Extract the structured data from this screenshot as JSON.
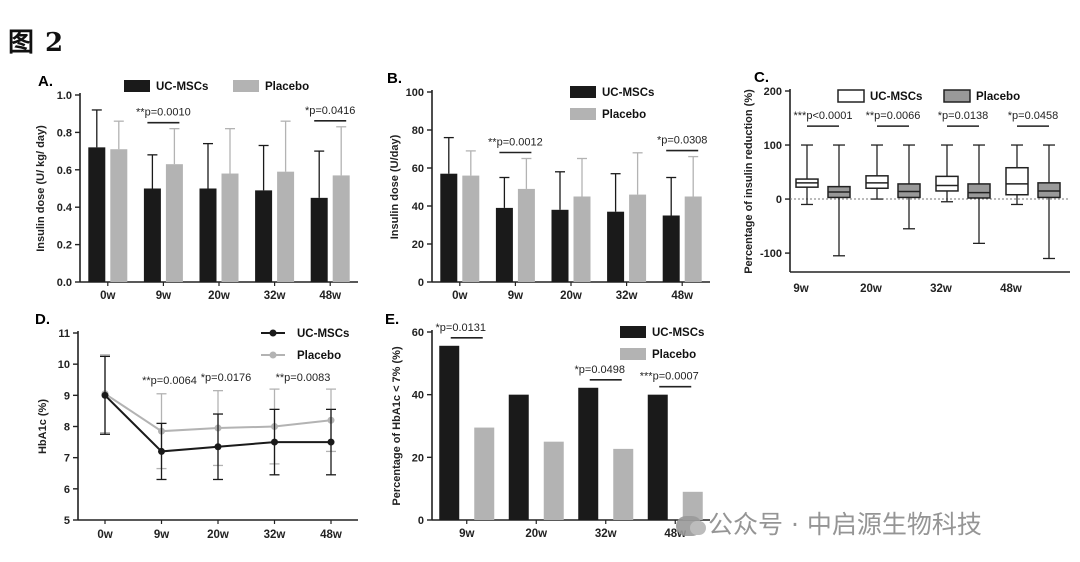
{
  "figure": {
    "title": "图 2"
  },
  "watermark": {
    "text": "公众号 · 中启源生物科技",
    "icon": "wechat-icon"
  },
  "colors": {
    "ucmsc": "#1a1a1a",
    "placebo": "#b3b3b3",
    "axis": "#222222"
  },
  "chart_data": [
    {
      "id": "A",
      "letter": "A.",
      "type": "bar",
      "ylabel": "Insulin dose (U/ kg/ day)",
      "ylim": [
        0,
        1.0
      ],
      "yticks": [
        "0.0",
        "0.2",
        "0.4",
        "0.6",
        "0.8",
        "1.0"
      ],
      "ytick_values": [
        0,
        0.2,
        0.4,
        0.6,
        0.8,
        1.0
      ],
      "categories": [
        "0w",
        "9w",
        "20w",
        "32w",
        "48w"
      ],
      "legend": "top",
      "series": [
        {
          "name": "UC-MSCs",
          "values": [
            0.72,
            0.5,
            0.5,
            0.49,
            0.45
          ],
          "errors": [
            0.2,
            0.18,
            0.24,
            0.24,
            0.25
          ]
        },
        {
          "name": "Placebo",
          "values": [
            0.71,
            0.63,
            0.58,
            0.59,
            0.57
          ],
          "errors": [
            0.15,
            0.19,
            0.24,
            0.27,
            0.26
          ]
        }
      ],
      "annotations": [
        {
          "category": "9w",
          "text": "**p=0.0010"
        },
        {
          "category": "48w",
          "text": "*p=0.0416"
        }
      ]
    },
    {
      "id": "B",
      "letter": "B.",
      "type": "bar",
      "ylabel": "Insulin dose (U/day)",
      "ylim": [
        0,
        100
      ],
      "yticks": [
        "0",
        "20",
        "40",
        "60",
        "80",
        "100"
      ],
      "ytick_values": [
        0,
        20,
        40,
        60,
        80,
        100
      ],
      "categories": [
        "0w",
        "9w",
        "20w",
        "32w",
        "48w"
      ],
      "legend": "top-right",
      "series": [
        {
          "name": "UC-MSCs",
          "values": [
            57,
            39,
            38,
            37,
            35
          ],
          "errors": [
            19,
            16,
            20,
            20,
            20
          ]
        },
        {
          "name": "Placebo",
          "values": [
            56,
            49,
            45,
            46,
            45
          ],
          "errors": [
            13,
            16,
            20,
            22,
            21
          ]
        }
      ],
      "annotations": [
        {
          "category": "9w",
          "text": "**p=0.0012"
        },
        {
          "category": "48w",
          "text": "*p=0.0308"
        }
      ]
    },
    {
      "id": "C",
      "letter": "C.",
      "type": "box",
      "ylabel": "Percentage of insulin reduction (%)",
      "ylim": [
        -135,
        200
      ],
      "yticks": [
        "-100",
        "0",
        "100",
        "200"
      ],
      "ytick_values": [
        -100,
        0,
        100,
        200
      ],
      "categories": [
        "9w",
        "20w",
        "32w",
        "48w"
      ],
      "legend": "top",
      "series": [
        {
          "name": "UC-MSCs",
          "boxes": [
            {
              "min": -10,
              "q1": 22,
              "median": 30,
              "q3": 37,
              "max": 100
            },
            {
              "min": 0,
              "q1": 20,
              "median": 30,
              "q3": 43,
              "max": 100
            },
            {
              "min": -5,
              "q1": 15,
              "median": 25,
              "q3": 42,
              "max": 100
            },
            {
              "min": -10,
              "q1": 8,
              "median": 28,
              "q3": 58,
              "max": 100
            }
          ]
        },
        {
          "name": "Placebo",
          "boxes": [
            {
              "min": -105,
              "q1": 3,
              "median": 13,
              "q3": 23,
              "max": 100
            },
            {
              "min": -55,
              "q1": 3,
              "median": 14,
              "q3": 28,
              "max": 100
            },
            {
              "min": -82,
              "q1": 2,
              "median": 12,
              "q3": 28,
              "max": 100
            },
            {
              "min": -110,
              "q1": 3,
              "median": 15,
              "q3": 30,
              "max": 100
            }
          ]
        }
      ],
      "annotations": [
        {
          "category": "9w",
          "text": "***p<0.0001"
        },
        {
          "category": "20w",
          "text": "**p=0.0066"
        },
        {
          "category": "32w",
          "text": "*p=0.0138"
        },
        {
          "category": "48w",
          "text": "*p=0.0458"
        }
      ]
    },
    {
      "id": "D",
      "letter": "D.",
      "type": "line",
      "ylabel": "HbA1c (%)",
      "ylim": [
        5,
        11
      ],
      "yticks": [
        "5",
        "6",
        "7",
        "8",
        "9",
        "10",
        "11"
      ],
      "ytick_values": [
        5,
        6,
        7,
        8,
        9,
        10,
        11
      ],
      "categories": [
        "0w",
        "9w",
        "20w",
        "32w",
        "48w"
      ],
      "legend": "top-right",
      "series": [
        {
          "name": "UC-MSCs",
          "values": [
            9.0,
            7.2,
            7.35,
            7.5,
            7.5
          ],
          "errors": [
            1.25,
            0.9,
            1.05,
            1.05,
            1.05
          ]
        },
        {
          "name": "Placebo",
          "values": [
            9.05,
            7.85,
            7.95,
            8.0,
            8.2
          ],
          "errors": [
            1.25,
            1.2,
            1.2,
            1.2,
            1.0
          ]
        }
      ],
      "annotations": [
        {
          "category": "9w",
          "text": "**p=0.0064"
        },
        {
          "category": "20w",
          "text": "*p=0.0176"
        },
        {
          "category": "48w",
          "text": "**p=0.0083"
        }
      ]
    },
    {
      "id": "E",
      "letter": "E.",
      "type": "bar",
      "ylabel": "Percentage of HbA1c < 7% (%)",
      "ylim": [
        0,
        60
      ],
      "yticks": [
        "0",
        "20",
        "40",
        "60"
      ],
      "ytick_values": [
        0,
        20,
        40,
        60
      ],
      "categories": [
        "9w",
        "20w",
        "32w",
        "48w"
      ],
      "legend": "top-right",
      "series": [
        {
          "name": "UC-MSCs",
          "values": [
            55.6,
            40,
            42.2,
            40
          ]
        },
        {
          "name": "Placebo",
          "values": [
            29.5,
            25,
            22.7,
            9
          ]
        }
      ],
      "annotations": [
        {
          "category": "9w",
          "text": "*p=0.0131"
        },
        {
          "category": "32w",
          "text": "*p=0.0498"
        },
        {
          "category": "48w",
          "text": "***p=0.0007"
        }
      ]
    }
  ]
}
